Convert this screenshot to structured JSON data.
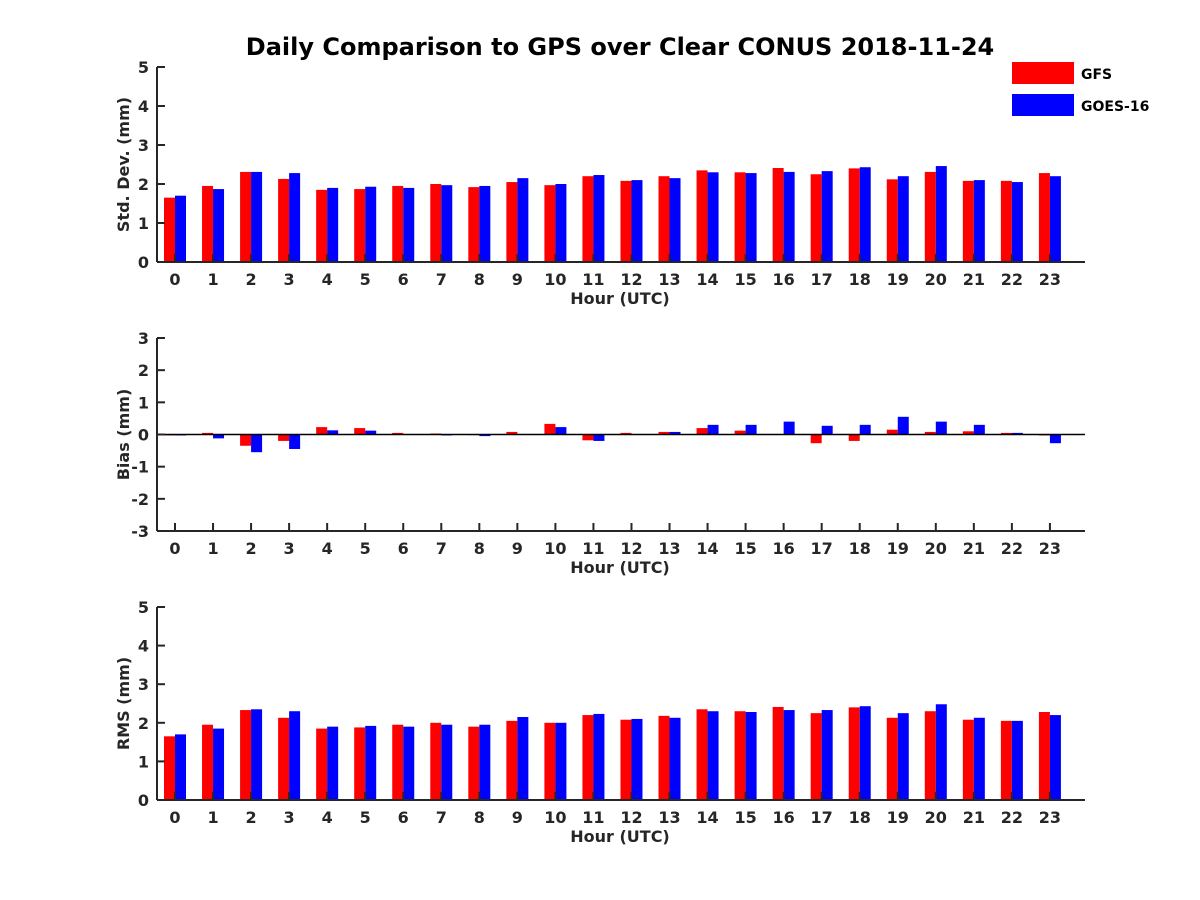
{
  "title": "Daily Comparison to GPS over Clear CONUS 2018-11-24",
  "legend": [
    {
      "name": "GFS",
      "color": "#ff0000"
    },
    {
      "name": "GOES-16",
      "color": "#0000ff"
    }
  ],
  "chart_data": [
    {
      "type": "bar",
      "title": "Daily Comparison to GPS over Clear CONUS 2018-11-24",
      "xlabel": "Hour (UTC)",
      "ylabel": "Std. Dev. (mm)",
      "ylim": [
        0,
        5
      ],
      "yticks": [
        "0",
        "1",
        "2",
        "3",
        "4",
        "5"
      ],
      "categories": [
        "0",
        "1",
        "2",
        "3",
        "4",
        "5",
        "6",
        "7",
        "8",
        "9",
        "10",
        "11",
        "12",
        "13",
        "14",
        "15",
        "16",
        "17",
        "18",
        "19",
        "20",
        "21",
        "22",
        "23"
      ],
      "series": [
        {
          "name": "GFS",
          "values": [
            1.65,
            1.95,
            2.31,
            2.13,
            1.85,
            1.87,
            1.95,
            2.0,
            1.92,
            2.05,
            1.97,
            2.2,
            2.08,
            2.2,
            2.35,
            2.3,
            2.41,
            2.25,
            2.4,
            2.12,
            2.31,
            2.08,
            2.08,
            2.28
          ]
        },
        {
          "name": "GOES-16",
          "values": [
            1.7,
            1.87,
            2.31,
            2.28,
            1.9,
            1.93,
            1.9,
            1.97,
            1.95,
            2.15,
            2.0,
            2.23,
            2.1,
            2.15,
            2.3,
            2.28,
            2.31,
            2.33,
            2.43,
            2.2,
            2.46,
            2.1,
            2.05,
            2.2
          ]
        }
      ]
    },
    {
      "type": "bar",
      "xlabel": "Hour (UTC)",
      "ylabel": "Bias (mm)",
      "ylim": [
        -3,
        3
      ],
      "yticks": [
        "-3",
        "-2",
        "-1",
        "0",
        "1",
        "2",
        "3"
      ],
      "categories": [
        "0",
        "1",
        "2",
        "3",
        "4",
        "5",
        "6",
        "7",
        "8",
        "9",
        "10",
        "11",
        "12",
        "13",
        "14",
        "15",
        "16",
        "17",
        "18",
        "19",
        "20",
        "21",
        "22",
        "23"
      ],
      "series": [
        {
          "name": "GFS",
          "values": [
            -0.03,
            0.05,
            -0.35,
            -0.2,
            0.23,
            0.2,
            0.05,
            0.03,
            -0.02,
            0.08,
            0.33,
            -0.18,
            0.05,
            0.08,
            0.2,
            0.12,
            0.0,
            -0.27,
            -0.2,
            0.15,
            0.08,
            0.1,
            0.05,
            -0.03
          ]
        },
        {
          "name": "GOES-16",
          "values": [
            -0.03,
            -0.12,
            -0.55,
            -0.45,
            0.13,
            0.12,
            0.0,
            -0.03,
            -0.05,
            0.0,
            0.23,
            -0.2,
            0.0,
            0.08,
            0.3,
            0.3,
            0.4,
            0.27,
            0.3,
            0.55,
            0.4,
            0.3,
            0.05,
            -0.27
          ]
        }
      ]
    },
    {
      "type": "bar",
      "xlabel": "Hour (UTC)",
      "ylabel": "RMS (mm)",
      "ylim": [
        0,
        5
      ],
      "yticks": [
        "0",
        "1",
        "2",
        "3",
        "4",
        "5"
      ],
      "categories": [
        "0",
        "1",
        "2",
        "3",
        "4",
        "5",
        "6",
        "7",
        "8",
        "9",
        "10",
        "11",
        "12",
        "13",
        "14",
        "15",
        "16",
        "17",
        "18",
        "19",
        "20",
        "21",
        "22",
        "23"
      ],
      "series": [
        {
          "name": "GFS",
          "values": [
            1.65,
            1.95,
            2.33,
            2.13,
            1.85,
            1.88,
            1.95,
            2.0,
            1.9,
            2.05,
            2.0,
            2.2,
            2.08,
            2.18,
            2.35,
            2.3,
            2.41,
            2.25,
            2.4,
            2.13,
            2.3,
            2.08,
            2.05,
            2.28
          ]
        },
        {
          "name": "GOES-16",
          "values": [
            1.7,
            1.85,
            2.35,
            2.3,
            1.9,
            1.92,
            1.9,
            1.95,
            1.95,
            2.15,
            2.0,
            2.23,
            2.1,
            2.13,
            2.3,
            2.28,
            2.33,
            2.33,
            2.43,
            2.25,
            2.48,
            2.13,
            2.05,
            2.2
          ]
        }
      ]
    }
  ]
}
